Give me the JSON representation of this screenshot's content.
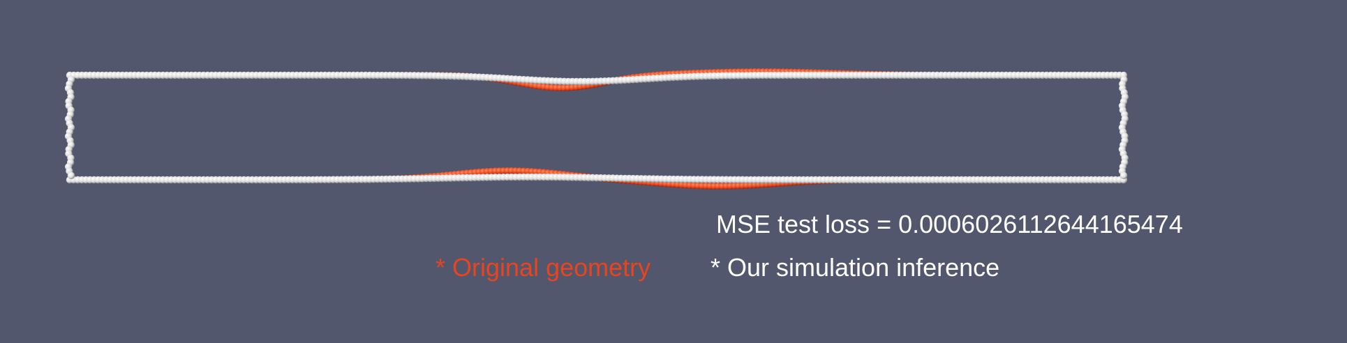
{
  "colors": {
    "background": "#52576e",
    "original_particle": "#e8451e",
    "inference_particle": "#f2f2f2",
    "label_text": "#ffffff"
  },
  "metrics": {
    "loss_label": "MSE test loss = 0.0006026112644165474"
  },
  "legend": {
    "original": {
      "label": "* Original geometry",
      "color": "#e8451e"
    },
    "inference": {
      "label": "* Our simulation inference",
      "color": "#ffffff"
    }
  }
}
